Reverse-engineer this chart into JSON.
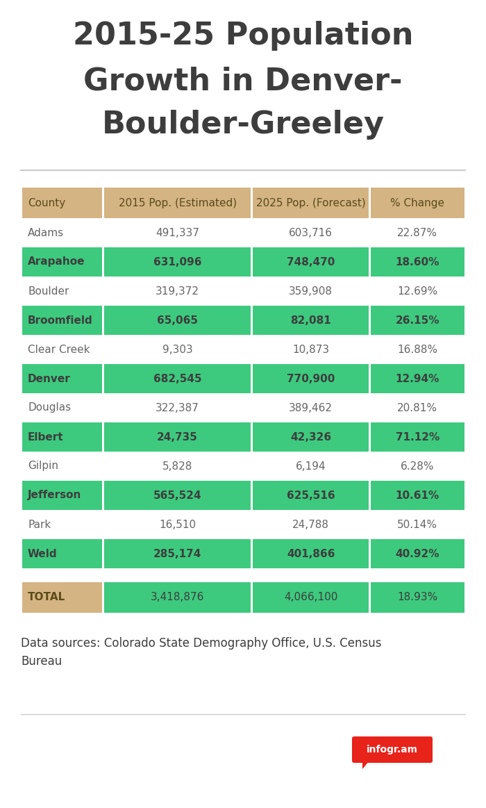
{
  "title_line1": "2015-25 Population",
  "title_line2": "Growth in Denver-",
  "title_line3": "Boulder-Greeley",
  "title_color": "#3d3d3d",
  "background_color": "#ffffff",
  "header": [
    "County",
    "2015 Pop. (Estimated)",
    "2025 Pop. (Forecast)",
    "% Change"
  ],
  "header_bg": "#d4b483",
  "header_text_color": "#5a4a1a",
  "rows": [
    [
      "Adams",
      "491,337",
      "603,716",
      "22.87%",
      false
    ],
    [
      "Arapahoe",
      "631,096",
      "748,470",
      "18.60%",
      true
    ],
    [
      "Boulder",
      "319,372",
      "359,908",
      "12.69%",
      false
    ],
    [
      "Broomfield",
      "65,065",
      "82,081",
      "26.15%",
      true
    ],
    [
      "Clear Creek",
      "9,303",
      "10,873",
      "16.88%",
      false
    ],
    [
      "Denver",
      "682,545",
      "770,900",
      "12.94%",
      true
    ],
    [
      "Douglas",
      "322,387",
      "389,462",
      "20.81%",
      false
    ],
    [
      "Elbert",
      "24,735",
      "42,326",
      "71.12%",
      true
    ],
    [
      "Gilpin",
      "5,828",
      "6,194",
      "6.28%",
      false
    ],
    [
      "Jefferson",
      "565,524",
      "625,516",
      "10.61%",
      true
    ],
    [
      "Park",
      "16,510",
      "24,788",
      "50.14%",
      false
    ],
    [
      "Weld",
      "285,174",
      "401,866",
      "40.92%",
      true
    ]
  ],
  "total_row": [
    "TOTAL",
    "3,418,876",
    "4,066,100",
    "18.93%"
  ],
  "total_bg_col1": "#d4b483",
  "total_bg_col234": "#3dca7e",
  "green_row_bg": "#3dca7e",
  "green_row_text": "#3d3d3d",
  "white_row_text": "#666666",
  "separator_color": "#cccccc",
  "source_text": "Data sources: Colorado State Demography Office, U.S. Census\nBureau",
  "source_text_color": "#3d3d3d",
  "badge_color": "#e8231a",
  "badge_text": "infogr.am"
}
